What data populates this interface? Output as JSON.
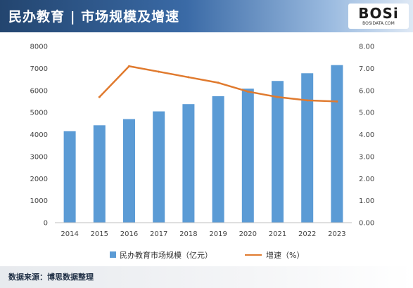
{
  "header": {
    "title": "民办教育 | 市场规模及增速",
    "logo_text": "BOSi",
    "logo_subtext": "BOSIDATA.COM"
  },
  "footer": {
    "source": "数据来源：博思数据整理"
  },
  "chart_data": {
    "type": "bar",
    "categories": [
      "2014",
      "2015",
      "2016",
      "2017",
      "2018",
      "2019",
      "2020",
      "2021",
      "2022",
      "2023"
    ],
    "series": [
      {
        "name": "民办教育市场规模（亿元）",
        "type": "bar",
        "axis": "left",
        "color": "#5b9bd5",
        "values": [
          4150,
          4420,
          4700,
          5050,
          5380,
          5740,
          6080,
          6430,
          6780,
          7150
        ]
      },
      {
        "name": "增速（%）",
        "type": "line",
        "axis": "right",
        "color": "#e07a2e",
        "values": [
          null,
          5.7,
          7.1,
          6.85,
          6.6,
          6.35,
          5.95,
          5.7,
          5.55,
          5.5
        ]
      }
    ],
    "y_left": {
      "range": [
        0,
        8000
      ],
      "ticks": [
        "0",
        "1000",
        "2000",
        "3000",
        "4000",
        "5000",
        "6000",
        "7000",
        "8000"
      ]
    },
    "y_right": {
      "range": [
        0,
        8
      ],
      "ticks": [
        "0.00",
        "1.00",
        "2.00",
        "3.00",
        "4.00",
        "5.00",
        "6.00",
        "7.00",
        "8.00"
      ]
    },
    "grid": false,
    "legend_position": "bottom"
  }
}
